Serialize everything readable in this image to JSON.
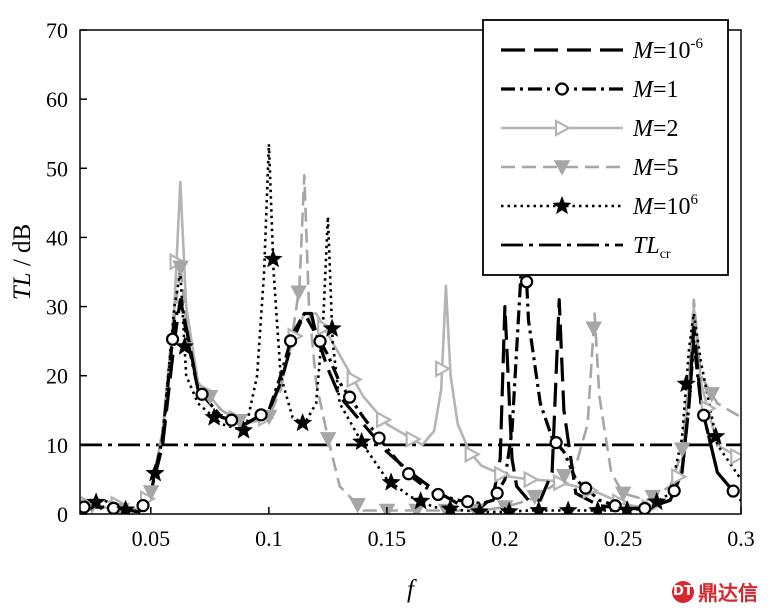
{
  "chart_data": {
    "type": "line",
    "xlabel": "f",
    "ylabel": "TL / dB",
    "xlim": [
      0.02,
      0.3
    ],
    "ylim": [
      0,
      70
    ],
    "xticks": [
      0.05,
      0.1,
      0.15,
      0.2,
      0.25,
      0.3
    ],
    "xtick_labels": [
      "0.05",
      "0.1",
      "0.15",
      "0.2",
      "0.25",
      "0.3"
    ],
    "yticks": [
      0,
      10,
      20,
      30,
      40,
      50,
      60,
      70
    ],
    "ytick_labels": [
      "0",
      "10",
      "20",
      "30",
      "40",
      "50",
      "60",
      "70"
    ],
    "grid": false,
    "legend_position": "top-right",
    "series": [
      {
        "name": "M=10⁻⁶",
        "label_main": "M",
        "label_rest": "=10",
        "label_sup": "-6",
        "color": "#000000",
        "dash": "long-dash",
        "marker": "none",
        "x": [
          0.02,
          0.03,
          0.04,
          0.045,
          0.05,
          0.055,
          0.06,
          0.0625,
          0.065,
          0.07,
          0.08,
          0.09,
          0.1,
          0.105,
          0.11,
          0.115,
          0.118,
          0.12,
          0.125,
          0.13,
          0.14,
          0.15,
          0.16,
          0.17,
          0.18,
          0.19,
          0.195,
          0.198,
          0.2,
          0.203,
          0.205,
          0.21,
          0.215,
          0.22,
          0.223,
          0.225,
          0.23,
          0.24,
          0.25,
          0.26,
          0.27,
          0.275,
          0.278,
          0.28,
          0.283,
          0.29,
          0.3
        ],
        "y": [
          1,
          1,
          0.6,
          0.3,
          3,
          10,
          25,
          31,
          27,
          18,
          14,
          13,
          15,
          19,
          25,
          29,
          29,
          26,
          21,
          17,
          13,
          9,
          6,
          3.5,
          1.5,
          1,
          2.5,
          8,
          30,
          8,
          4,
          2,
          2,
          6,
          31,
          15,
          3,
          1.2,
          0.8,
          0.8,
          2,
          6,
          16,
          27,
          16,
          6,
          2
        ]
      },
      {
        "name": "M=1",
        "label_main": "M",
        "label_rest": "=1",
        "label_sup": "",
        "color": "#000000",
        "dash": "dash-dot",
        "marker": "circle",
        "x": [
          0.02,
          0.03,
          0.04,
          0.045,
          0.05,
          0.055,
          0.06,
          0.063,
          0.065,
          0.07,
          0.08,
          0.09,
          0.1,
          0.105,
          0.11,
          0.115,
          0.12,
          0.125,
          0.13,
          0.14,
          0.15,
          0.16,
          0.17,
          0.18,
          0.19,
          0.195,
          0.2,
          0.203,
          0.206,
          0.208,
          0.21,
          0.215,
          0.22,
          0.225,
          0.23,
          0.24,
          0.25,
          0.26,
          0.27,
          0.275,
          0.278,
          0.28,
          0.283,
          0.29,
          0.3
        ],
        "y": [
          1,
          1,
          0.6,
          0.3,
          3,
          11,
          28,
          31,
          26,
          18,
          14,
          13,
          15,
          20,
          26,
          29,
          26,
          23,
          19,
          14,
          9.5,
          5.5,
          3,
          2,
          1.5,
          2,
          5,
          12,
          30,
          42,
          28,
          16,
          11,
          9,
          5,
          2,
          0.8,
          0.8,
          2,
          6,
          16,
          25,
          16,
          6,
          2
        ]
      },
      {
        "name": "M=2",
        "label_main": "M",
        "label_rest": "=2",
        "label_sup": "",
        "color": "#b4b4b4",
        "dash": "solid",
        "marker": "triangle-right",
        "x": [
          0.02,
          0.03,
          0.04,
          0.045,
          0.05,
          0.055,
          0.06,
          0.0625,
          0.065,
          0.07,
          0.08,
          0.09,
          0.1,
          0.105,
          0.11,
          0.115,
          0.12,
          0.13,
          0.14,
          0.15,
          0.16,
          0.165,
          0.17,
          0.173,
          0.175,
          0.177,
          0.18,
          0.185,
          0.19,
          0.2,
          0.21,
          0.22,
          0.23,
          0.24,
          0.25,
          0.26,
          0.27,
          0.275,
          0.278,
          0.28,
          0.283,
          0.29,
          0.3
        ],
        "y": [
          1,
          2,
          1,
          0.5,
          3,
          12,
          30,
          48,
          30,
          19,
          15,
          13,
          14,
          19,
          25,
          29,
          29,
          23,
          17,
          13,
          11,
          10,
          12,
          18,
          33,
          20,
          13,
          9,
          7,
          5.5,
          5,
          4.8,
          4,
          3,
          1.5,
          0.8,
          2,
          7,
          19,
          30,
          19,
          10,
          8
        ]
      },
      {
        "name": "M=5",
        "label_main": "M",
        "label_rest": "=5",
        "label_sup": "",
        "color": "#a6a6a6",
        "dash": "dash",
        "marker": "triangle-down",
        "x": [
          0.02,
          0.03,
          0.04,
          0.045,
          0.05,
          0.055,
          0.06,
          0.0625,
          0.065,
          0.07,
          0.08,
          0.09,
          0.1,
          0.105,
          0.11,
          0.113,
          0.115,
          0.117,
          0.12,
          0.125,
          0.13,
          0.14,
          0.15,
          0.16,
          0.17,
          0.18,
          0.19,
          0.2,
          0.21,
          0.22,
          0.23,
          0.235,
          0.238,
          0.24,
          0.245,
          0.25,
          0.26,
          0.27,
          0.275,
          0.278,
          0.28,
          0.283,
          0.29,
          0.3
        ],
        "y": [
          1.5,
          1,
          0.5,
          0.3,
          3,
          12,
          28,
          36,
          28,
          19,
          15,
          13,
          14,
          18,
          26,
          33,
          49,
          30,
          19,
          11,
          4,
          0.5,
          0.5,
          0.5,
          0.5,
          0.5,
          0.5,
          1,
          2,
          4,
          7,
          13,
          29,
          17,
          6,
          3,
          2,
          4,
          9,
          20,
          31,
          20,
          16,
          14
        ]
      },
      {
        "name": "M=10⁶",
        "label_main": "M",
        "label_rest": "=10",
        "label_sup": "6",
        "color": "#000000",
        "dash": "dot",
        "marker": "star",
        "x": [
          0.02,
          0.03,
          0.04,
          0.045,
          0.05,
          0.055,
          0.06,
          0.0625,
          0.065,
          0.07,
          0.08,
          0.09,
          0.095,
          0.098,
          0.1,
          0.102,
          0.105,
          0.11,
          0.115,
          0.12,
          0.123,
          0.125,
          0.127,
          0.13,
          0.14,
          0.15,
          0.16,
          0.17,
          0.18,
          0.19,
          0.2,
          0.21,
          0.22,
          0.23,
          0.24,
          0.25,
          0.26,
          0.27,
          0.275,
          0.278,
          0.28,
          0.283,
          0.29,
          0.3
        ],
        "y": [
          1,
          2,
          0.5,
          0.3,
          3,
          11,
          30,
          35,
          20,
          16,
          13,
          12,
          20,
          35,
          53.5,
          35,
          20,
          14,
          13,
          16,
          28,
          43,
          25,
          16,
          10,
          5,
          2.5,
          1,
          0.6,
          0.3,
          0.3,
          0.5,
          0.5,
          0.5,
          0.5,
          0.5,
          0.8,
          3,
          11,
          24,
          29,
          22,
          10,
          5
        ]
      }
    ],
    "reference_line": {
      "name": "TL_cr",
      "label_main": "TL",
      "label_sub": "cr",
      "y": 10,
      "color": "#000000",
      "dash": "long-dash-dot"
    }
  },
  "watermark": {
    "logo": "DT",
    "text": "鼎达信"
  }
}
